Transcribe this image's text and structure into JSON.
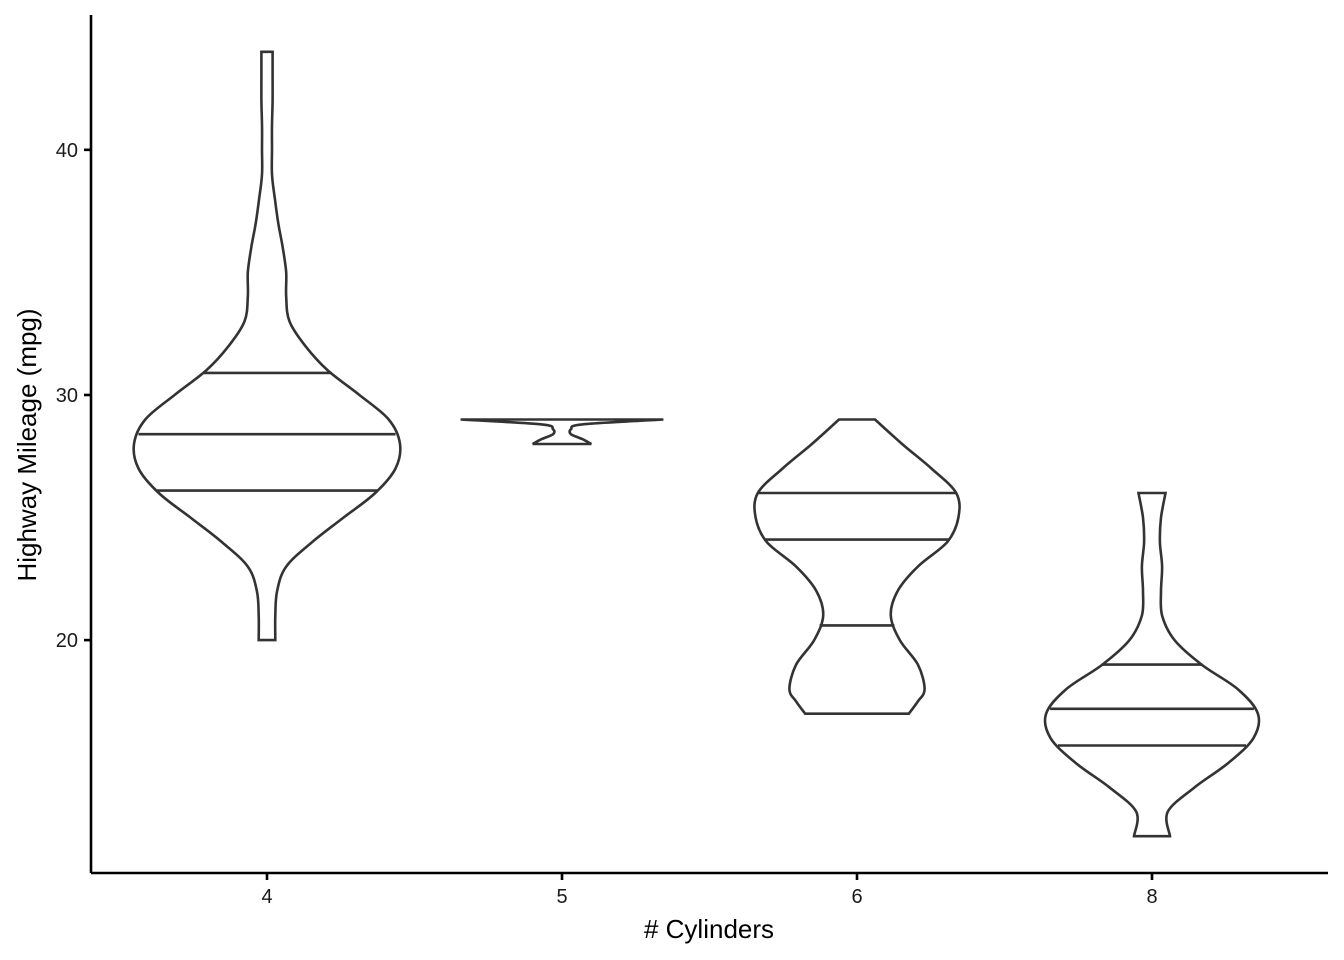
{
  "chart_data": {
    "type": "violin",
    "xlabel": "# Cylinders",
    "ylabel": "Highway Mileage (mpg)",
    "categories": [
      "4",
      "5",
      "6",
      "8"
    ],
    "ylim": [
      10.5,
      45.5
    ],
    "yticks": [
      20,
      30,
      40
    ],
    "ytick_labels": [
      "20",
      "30",
      "40"
    ],
    "grid": false,
    "violins": [
      {
        "category": "4",
        "min": 20,
        "max": 44,
        "quantiles": [
          26.1,
          28.4,
          30.9
        ],
        "density": [
          [
            20,
            0.037
          ],
          [
            21,
            0.037
          ],
          [
            22,
            0.045
          ],
          [
            23,
            0.085
          ],
          [
            24,
            0.2
          ],
          [
            25,
            0.34
          ],
          [
            26,
            0.48
          ],
          [
            27,
            0.57
          ],
          [
            28,
            0.59
          ],
          [
            29,
            0.54
          ],
          [
            30,
            0.41
          ],
          [
            31,
            0.27
          ],
          [
            32,
            0.17
          ],
          [
            33,
            0.1
          ],
          [
            34,
            0.085
          ],
          [
            35,
            0.085
          ],
          [
            36,
            0.07
          ],
          [
            37,
            0.05
          ],
          [
            38,
            0.035
          ],
          [
            39,
            0.022
          ],
          [
            40,
            0.022
          ],
          [
            41,
            0.022
          ],
          [
            42,
            0.025
          ],
          [
            43,
            0.025
          ],
          [
            44,
            0.025
          ]
        ]
      },
      {
        "category": "5",
        "min": 28,
        "max": 29,
        "quantiles": [],
        "density": [
          [
            28,
            0.13
          ],
          [
            28.2,
            0.09
          ],
          [
            28.4,
            0.04
          ],
          [
            28.6,
            0.04
          ],
          [
            28.8,
            0.09
          ],
          [
            29,
            0.45
          ]
        ]
      },
      {
        "category": "6",
        "min": 17,
        "max": 29,
        "quantiles": [
          20.6,
          24.1,
          26.0
        ],
        "density": [
          [
            17,
            0.23
          ],
          [
            17.5,
            0.27
          ],
          [
            18,
            0.3
          ],
          [
            19,
            0.27
          ],
          [
            20,
            0.19
          ],
          [
            21,
            0.15
          ],
          [
            22,
            0.18
          ],
          [
            23,
            0.27
          ],
          [
            24,
            0.4
          ],
          [
            25,
            0.45
          ],
          [
            26,
            0.44
          ],
          [
            27,
            0.33
          ],
          [
            28,
            0.2
          ],
          [
            29,
            0.08
          ]
        ]
      },
      {
        "category": "8",
        "min": 12,
        "max": 26,
        "quantiles": [
          15.7,
          17.2,
          19.0
        ],
        "density": [
          [
            12,
            0.08
          ],
          [
            13,
            0.07
          ],
          [
            14,
            0.19
          ],
          [
            15,
            0.34
          ],
          [
            16,
            0.45
          ],
          [
            17,
            0.47
          ],
          [
            18,
            0.38
          ],
          [
            19,
            0.22
          ],
          [
            20,
            0.1
          ],
          [
            21,
            0.045
          ],
          [
            22,
            0.04
          ],
          [
            23,
            0.045
          ],
          [
            24,
            0.035
          ],
          [
            25,
            0.04
          ],
          [
            26,
            0.06
          ]
        ]
      }
    ]
  }
}
